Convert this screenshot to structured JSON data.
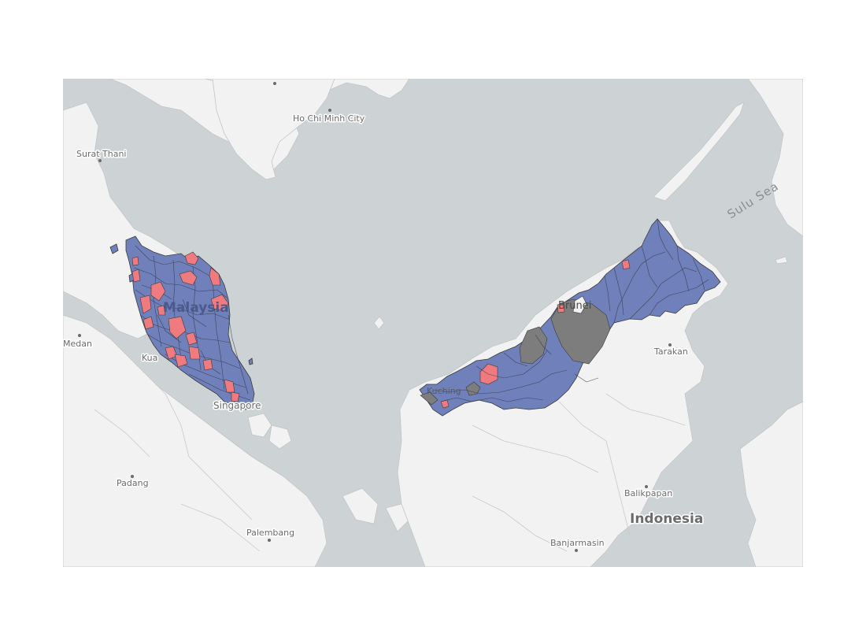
{
  "map": {
    "colors": {
      "sea": "#cdd3d4",
      "land": "#f2f2f2",
      "border": "#bdbdbd",
      "blue": "#6f80ba",
      "red": "#ef7b80",
      "grey": "#7d7d7d"
    },
    "labels": {
      "hcmc": "Ho Chi Minh City",
      "surat": "Surat Thani",
      "medan": "Medan",
      "kl": "Kua",
      "singapore": "Singapore",
      "malaysia": "Malaysia",
      "brunei": "Brunei",
      "kuching": "Kuching",
      "tarakan": "Tarakan",
      "sulu": "Sulu Sea",
      "padang": "Padang",
      "palembang": "Palembang",
      "balikpapan": "Balikpapan",
      "indonesia": "Indonesia",
      "banjarmasin": "Banjarmasin"
    }
  }
}
